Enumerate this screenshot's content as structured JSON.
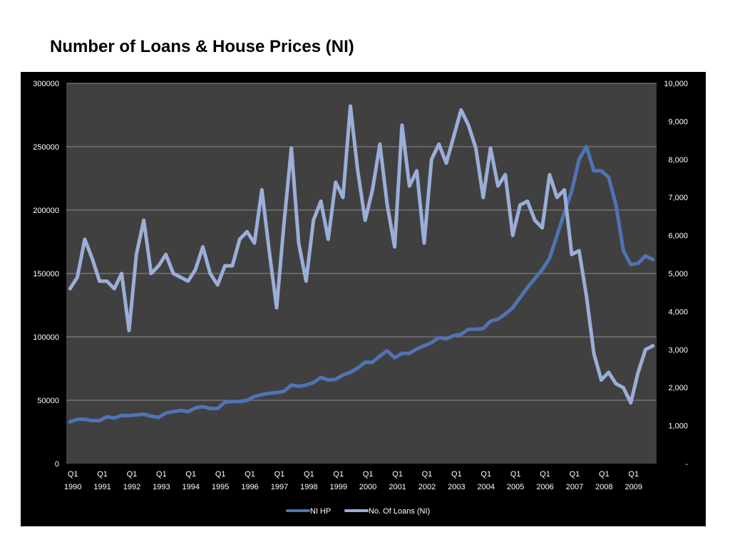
{
  "page": {
    "title": "Number of Loans & House Prices (NI)"
  },
  "colors": {
    "panel_bg": "#000000",
    "plot_bg": "#404040",
    "gridline": "#8c8c8c",
    "hp_line": "#4f74b3",
    "loans_line": "#9aaed8",
    "text": "#ffffff"
  },
  "chart_data": {
    "type": "line",
    "title": "Number of Loans & House Prices (NI)",
    "grid": true,
    "legend_position": "bottom",
    "x": [
      "1990Q1",
      "1990Q2",
      "1990Q3",
      "1990Q4",
      "1991Q1",
      "1991Q2",
      "1991Q3",
      "1991Q4",
      "1992Q1",
      "1992Q2",
      "1992Q3",
      "1992Q4",
      "1993Q1",
      "1993Q2",
      "1993Q3",
      "1993Q4",
      "1994Q1",
      "1994Q2",
      "1994Q3",
      "1994Q4",
      "1995Q1",
      "1995Q2",
      "1995Q3",
      "1995Q4",
      "1996Q1",
      "1996Q2",
      "1996Q3",
      "1996Q4",
      "1997Q1",
      "1997Q2",
      "1997Q3",
      "1997Q4",
      "1998Q1",
      "1998Q2",
      "1998Q3",
      "1998Q4",
      "1999Q1",
      "1999Q2",
      "1999Q3",
      "1999Q4",
      "2000Q1",
      "2000Q2",
      "2000Q3",
      "2000Q4",
      "2001Q1",
      "2001Q2",
      "2001Q3",
      "2001Q4",
      "2002Q1",
      "2002Q2",
      "2002Q3",
      "2002Q4",
      "2003Q1",
      "2003Q2",
      "2003Q3",
      "2003Q4",
      "2004Q1",
      "2004Q2",
      "2004Q3",
      "2004Q4",
      "2005Q1",
      "2005Q2",
      "2005Q3",
      "2005Q4",
      "2006Q1",
      "2006Q2",
      "2006Q3",
      "2006Q4",
      "2007Q1",
      "2007Q2",
      "2007Q3",
      "2007Q4",
      "2008Q1",
      "2008Q2",
      "2008Q3",
      "2008Q4",
      "2009Q1",
      "2009Q2",
      "2009Q3",
      "2009Q4"
    ],
    "x_tick_labels": [
      {
        "q": "Q1",
        "year": "1990"
      },
      {
        "q": "Q1",
        "year": "1991"
      },
      {
        "q": "Q1",
        "year": "1992"
      },
      {
        "q": "Q1",
        "year": "1993"
      },
      {
        "q": "Q1",
        "year": "1994"
      },
      {
        "q": "Q1",
        "year": "1995"
      },
      {
        "q": "Q1",
        "year": "1996"
      },
      {
        "q": "Q1",
        "year": "1997"
      },
      {
        "q": "Q1",
        "year": "1998"
      },
      {
        "q": "Q1",
        "year": "1999"
      },
      {
        "q": "Q1",
        "year": "2000"
      },
      {
        "q": "Q1",
        "year": "2001"
      },
      {
        "q": "Q1",
        "year": "2002"
      },
      {
        "q": "Q1",
        "year": "2003"
      },
      {
        "q": "Q1",
        "year": "2004"
      },
      {
        "q": "Q1",
        "year": "2005"
      },
      {
        "q": "Q1",
        "year": "2006"
      },
      {
        "q": "Q1",
        "year": "2007"
      },
      {
        "q": "Q1",
        "year": "2008"
      },
      {
        "q": "Q1",
        "year": "2009"
      }
    ],
    "y_left": {
      "range": [
        0,
        300000
      ],
      "ticks": [
        0,
        50000,
        100000,
        150000,
        200000,
        250000,
        300000
      ],
      "tick_labels": [
        "0",
        "50000",
        "100000",
        "150000",
        "200000",
        "250000",
        "300000"
      ]
    },
    "y_right": {
      "range": [
        0,
        10000
      ],
      "ticks": [
        0,
        1000,
        2000,
        3000,
        4000,
        5000,
        6000,
        7000,
        8000,
        9000,
        10000
      ],
      "tick_labels": [
        "-",
        "1,000",
        "2,000",
        "3,000",
        "4,000",
        "5,000",
        "6,000",
        "7,000",
        "8,000",
        "9,000",
        "10,000"
      ]
    },
    "series": [
      {
        "name": "NI HP",
        "axis": "left",
        "values": [
          33000,
          35000,
          35000,
          34000,
          34000,
          37000,
          36000,
          38000,
          38000,
          38500,
          39000,
          37500,
          36500,
          40000,
          41000,
          42000,
          41000,
          44000,
          45000,
          43500,
          43500,
          48500,
          49000,
          49000,
          50000,
          53000,
          54500,
          55500,
          56000,
          57000,
          62000,
          61000,
          62000,
          64000,
          68000,
          66000,
          66500,
          70000,
          72000,
          75500,
          80000,
          80000,
          85000,
          89000,
          83500,
          87000,
          87000,
          90500,
          93000,
          95500,
          99500,
          98500,
          101000,
          102000,
          106000,
          106000,
          106500,
          112500,
          114000,
          118000,
          123000,
          131000,
          139000,
          146000,
          153000,
          162000,
          180000,
          198000,
          215000,
          240000,
          250000,
          231000,
          231000,
          226000,
          204000,
          168000,
          157000,
          158000,
          164000,
          161000
        ]
      },
      {
        "name": "No. Of Loans (NI)",
        "axis": "right",
        "values": [
          4600,
          4900,
          5900,
          5400,
          4800,
          4800,
          4600,
          5000,
          3500,
          5500,
          6400,
          5000,
          5200,
          5500,
          5000,
          4900,
          4800,
          5100,
          5700,
          5000,
          4700,
          5200,
          5200,
          5900,
          6100,
          5800,
          7200,
          5600,
          4100,
          6300,
          8300,
          5800,
          4800,
          6400,
          6900,
          5900,
          7400,
          7000,
          9400,
          7700,
          6400,
          7200,
          8400,
          6800,
          5700,
          8900,
          7300,
          7700,
          5800,
          8000,
          8400,
          7900,
          8600,
          9300,
          8900,
          8300,
          7000,
          8300,
          7300,
          7600,
          6000,
          6800,
          6900,
          6400,
          6200,
          7600,
          7000,
          7200,
          5500,
          5600,
          4400,
          2900,
          2200,
          2400,
          2100,
          2000,
          1600,
          2400,
          3000,
          3100
        ]
      }
    ]
  }
}
